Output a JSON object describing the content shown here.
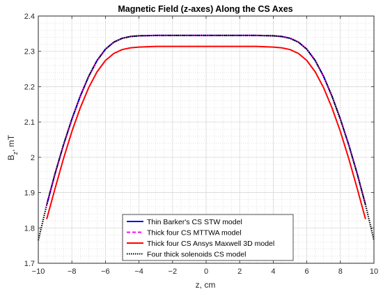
{
  "chart_data": {
    "type": "line",
    "title": "Magnetic Field (z-axes) Along the CS Axes",
    "xlabel": "z, cm",
    "ylabel": "B_z, mT",
    "ylabel_main": "B",
    "ylabel_sub": "z",
    "ylabel_suffix": ", mT",
    "xlim": [
      -10,
      10
    ],
    "ylim": [
      1.7,
      2.4
    ],
    "x_ticks": [
      -10,
      -8,
      -6,
      -4,
      -2,
      0,
      2,
      4,
      6,
      8,
      10
    ],
    "y_ticks": [
      1.7,
      1.8,
      1.9,
      2.0,
      2.1,
      2.2,
      2.3,
      2.4
    ],
    "x_tick_labels": [
      "−10",
      "−8",
      "−6",
      "−4",
      "−2",
      "0",
      "2",
      "4",
      "6",
      "8",
      "10"
    ],
    "y_tick_labels": [
      "1.7",
      "1.8",
      "1.9",
      "2",
      "2.1",
      "2.2",
      "2.3",
      "2.4"
    ],
    "grid": true,
    "minor_grid": true,
    "legend_position": "bottom-center",
    "series": [
      {
        "name": "Thin Barker's CS STW model",
        "color": "#0000ff",
        "style": "solid",
        "x": [
          -9.5,
          -9.0,
          -8.5,
          -8.0,
          -7.5,
          -7.0,
          -6.5,
          -6.0,
          -5.5,
          -5.0,
          -4.5,
          -4.0,
          -3.0,
          -2.0,
          -1.0,
          0.0,
          1.0,
          2.0,
          3.0,
          4.0,
          4.5,
          5.0,
          5.5,
          6.0,
          6.5,
          7.0,
          7.5,
          8.0,
          8.5,
          9.0,
          9.5
        ],
        "y": [
          1.865,
          1.954,
          2.035,
          2.108,
          2.173,
          2.229,
          2.274,
          2.306,
          2.326,
          2.337,
          2.342,
          2.344,
          2.345,
          2.345,
          2.345,
          2.345,
          2.345,
          2.345,
          2.345,
          2.344,
          2.342,
          2.337,
          2.326,
          2.306,
          2.274,
          2.229,
          2.173,
          2.108,
          2.035,
          1.954,
          1.865
        ]
      },
      {
        "name": "Thick four CS MTTWA model",
        "color": "#ff00ff",
        "style": "dashed",
        "x": [
          -9.5,
          -9.0,
          -8.5,
          -8.0,
          -7.5,
          -7.0,
          -6.5,
          -6.0,
          -5.5,
          -5.0,
          -4.5,
          -4.0,
          -3.0,
          -2.0,
          -1.0,
          0.0,
          1.0,
          2.0,
          3.0,
          4.0,
          4.5,
          5.0,
          5.5,
          6.0,
          6.5,
          7.0,
          7.5,
          8.0,
          8.5,
          9.0,
          9.5
        ],
        "y": [
          1.865,
          1.954,
          2.035,
          2.108,
          2.173,
          2.229,
          2.274,
          2.306,
          2.326,
          2.337,
          2.342,
          2.344,
          2.345,
          2.345,
          2.345,
          2.345,
          2.345,
          2.345,
          2.345,
          2.344,
          2.342,
          2.337,
          2.326,
          2.306,
          2.274,
          2.229,
          2.173,
          2.108,
          2.035,
          1.954,
          1.865
        ]
      },
      {
        "name": "Thick four CS Ansys Maxwell 3D model",
        "color": "#ff0000",
        "style": "solid",
        "x": [
          -9.5,
          -9.0,
          -8.5,
          -8.0,
          -7.5,
          -7.0,
          -6.5,
          -6.0,
          -5.5,
          -5.0,
          -4.5,
          -4.0,
          -3.5,
          -3.0,
          -2.0,
          -1.0,
          0.0,
          1.0,
          2.0,
          3.0,
          3.5,
          4.0,
          4.5,
          5.0,
          5.5,
          6.0,
          6.5,
          7.0,
          7.5,
          8.0,
          8.5,
          9.0,
          9.5
        ],
        "y": [
          1.825,
          1.912,
          1.996,
          2.073,
          2.14,
          2.197,
          2.242,
          2.274,
          2.294,
          2.305,
          2.31,
          2.312,
          2.313,
          2.314,
          2.314,
          2.314,
          2.314,
          2.314,
          2.314,
          2.314,
          2.313,
          2.312,
          2.31,
          2.305,
          2.294,
          2.274,
          2.242,
          2.197,
          2.14,
          2.073,
          1.996,
          1.912,
          1.825
        ]
      },
      {
        "name": "Four thick solenoids CS model",
        "color": "#000000",
        "style": "dotted",
        "x": [
          -10.0,
          -9.5,
          -9.0,
          -8.5,
          -8.0,
          -7.5,
          -7.0,
          -6.5,
          -6.0,
          -5.5,
          -5.0,
          -4.5,
          -4.0,
          -3.0,
          -2.0,
          -1.0,
          0.0,
          1.0,
          2.0,
          3.0,
          4.0,
          4.5,
          5.0,
          5.5,
          6.0,
          6.5,
          7.0,
          7.5,
          8.0,
          8.5,
          9.0,
          9.5,
          10.0
        ],
        "y": [
          1.765,
          1.865,
          1.954,
          2.035,
          2.108,
          2.173,
          2.229,
          2.274,
          2.306,
          2.326,
          2.337,
          2.342,
          2.344,
          2.345,
          2.345,
          2.345,
          2.345,
          2.345,
          2.345,
          2.345,
          2.344,
          2.342,
          2.337,
          2.326,
          2.306,
          2.274,
          2.229,
          2.173,
          2.108,
          2.035,
          1.954,
          1.865,
          1.765
        ]
      }
    ]
  }
}
